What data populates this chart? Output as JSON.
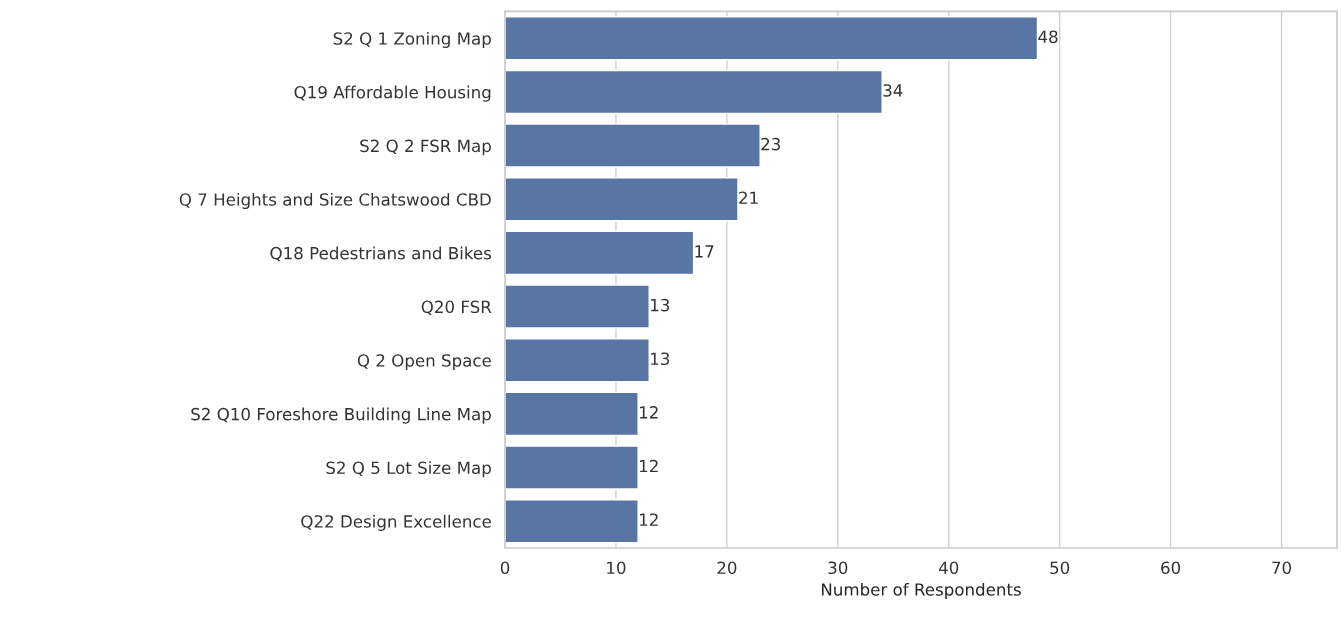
{
  "chart_data": {
    "type": "bar",
    "orientation": "horizontal",
    "xlabel": "Number of Respondents",
    "categories": [
      "S2 Q 1 Zoning Map",
      "Q19 Affordable Housing",
      "S2 Q 2 FSR Map",
      "Q 7 Heights and Size Chatswood CBD",
      "Q18 Pedestrians and Bikes",
      "Q20 FSR",
      "Q 2 Open Space",
      "S2 Q10 Foreshore Building Line Map",
      "S2 Q 5 Lot Size Map",
      "Q22 Design Excellence"
    ],
    "values": [
      48,
      34,
      23,
      21,
      17,
      13,
      13,
      12,
      12,
      12
    ],
    "color": "#5975a4",
    "xlim": [
      0,
      75
    ],
    "xticks": [
      0,
      10,
      20,
      30,
      40,
      50,
      60,
      70
    ],
    "grid": "x",
    "data_labels": true
  }
}
